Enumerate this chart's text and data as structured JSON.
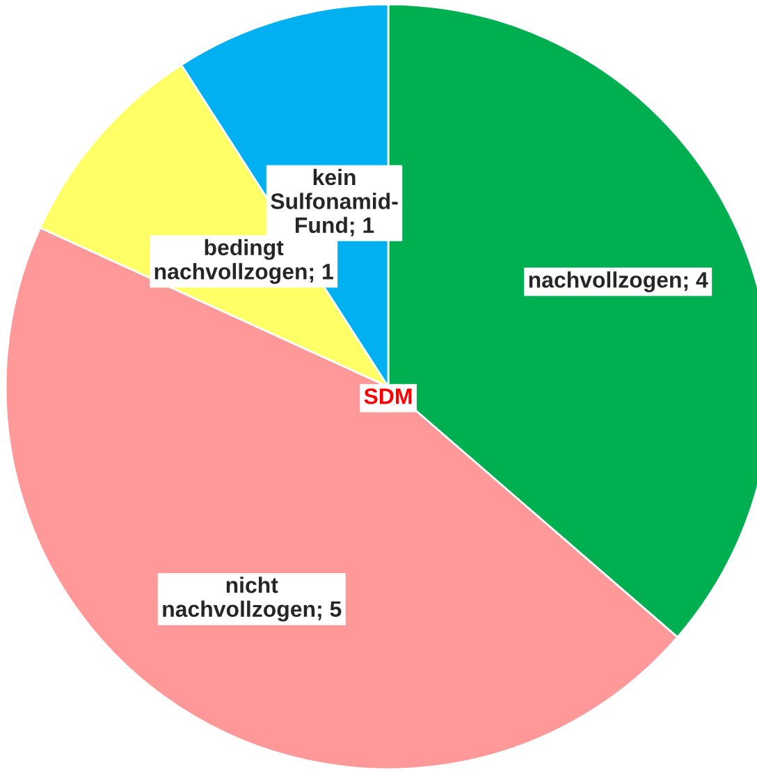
{
  "chart_data": {
    "type": "pie",
    "categories": [
      "nachvollzogen; 4",
      "nicht\nnachvollzogen; 5",
      "bedingt\nnachvollzogen; 1",
      "kein\nSulfonamid-\nFund; 1"
    ],
    "values": [
      4,
      5,
      1,
      1
    ],
    "colors": [
      "#00b050",
      "#ff9999",
      "#ffff66",
      "#00b0f0"
    ],
    "annotations": [
      "SDM"
    ]
  }
}
